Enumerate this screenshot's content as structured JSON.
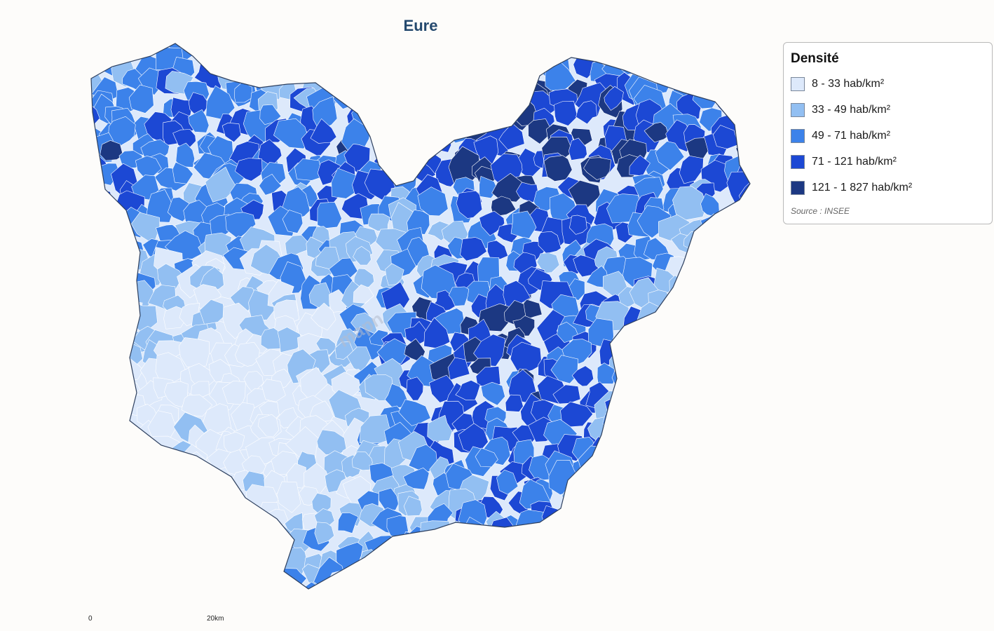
{
  "title": "Eure",
  "legend": {
    "title": "Densité",
    "items": [
      {
        "label": "8 - 33 hab/km²",
        "color": "#dde9fb"
      },
      {
        "label": "33 - 49 hab/km²",
        "color": "#92bff2"
      },
      {
        "label": "49 - 71 hab/km²",
        "color": "#3c82ea"
      },
      {
        "label": "71 - 121 hab/km²",
        "color": "#1c48d4"
      },
      {
        "label": "121 - 1 827 hab/km²",
        "color": "#1c3882"
      }
    ],
    "source": "Source : INSEE"
  },
  "scale": {
    "start": "0",
    "end": "20km"
  },
  "watermark": "mapn"
}
